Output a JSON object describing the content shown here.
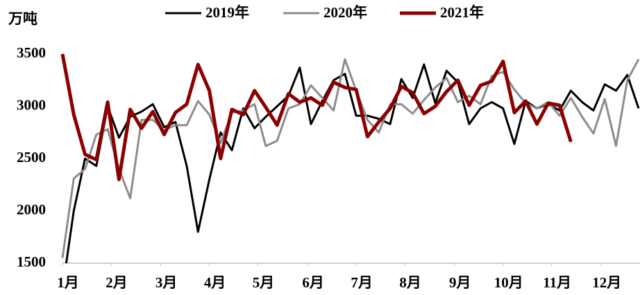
{
  "chart_data": {
    "type": "line",
    "y_label": "万吨",
    "x": [
      1,
      2,
      3,
      4,
      5,
      6,
      7,
      8,
      9,
      10,
      11,
      12,
      13,
      14,
      15,
      16,
      17,
      18,
      19,
      20,
      21,
      22,
      23,
      24,
      25,
      26,
      27,
      28,
      29,
      30,
      31,
      32,
      33,
      34,
      35,
      36,
      37,
      38,
      39,
      40,
      41,
      42,
      43,
      44,
      45,
      46,
      47,
      48,
      49,
      50,
      51,
      52
    ],
    "xlim": [
      1,
      52
    ],
    "xticks": [
      {
        "value": 1,
        "label": "1月"
      },
      {
        "value": 5.3,
        "label": "2月"
      },
      {
        "value": 9.7,
        "label": "3月"
      },
      {
        "value": 14,
        "label": "4月"
      },
      {
        "value": 18.3,
        "label": "5月"
      },
      {
        "value": 22.7,
        "label": "6月"
      },
      {
        "value": 27,
        "label": "7月"
      },
      {
        "value": 31.3,
        "label": "8月"
      },
      {
        "value": 35.7,
        "label": "9月"
      },
      {
        "value": 40,
        "label": "10月"
      },
      {
        "value": 44.3,
        "label": "11月"
      },
      {
        "value": 48.7,
        "label": "12月"
      }
    ],
    "ylim": [
      1500,
      3500
    ],
    "yticks": [
      1500,
      2000,
      2500,
      3000,
      3500
    ],
    "legend": "top",
    "series": [
      {
        "name": "2019年",
        "color": "#000000",
        "values": [
          1250,
          2000,
          2500,
          2430,
          3000,
          2700,
          2900,
          2950,
          3020,
          2800,
          2850,
          2430,
          1800,
          2300,
          2750,
          2580,
          2980,
          2790,
          2900,
          3000,
          3100,
          3370,
          2830,
          3050,
          3250,
          3310,
          2910,
          2910,
          2880,
          2830,
          3260,
          3080,
          3400,
          3030,
          3340,
          3230,
          2830,
          2980,
          3040,
          2980,
          2640,
          3050,
          2980,
          3020,
          2960,
          3150,
          3040,
          2960,
          3210,
          3150,
          3300,
          2980
        ]
      },
      {
        "name": "2020年",
        "color": "#8c8c8c",
        "values": [
          1550,
          2310,
          2400,
          2730,
          2780,
          2400,
          2120,
          2870,
          2870,
          2770,
          2820,
          2820,
          3050,
          2920,
          2650,
          2940,
          2960,
          3020,
          2620,
          2670,
          2980,
          3020,
          3200,
          3080,
          2960,
          3450,
          3150,
          2870,
          2750,
          3020,
          3020,
          2930,
          3060,
          3180,
          3270,
          3040,
          3100,
          3020,
          3290,
          3330,
          3160,
          3030,
          2980,
          3040,
          2910,
          3080,
          2900,
          2740,
          3070,
          2620,
          3250,
          3450
        ]
      },
      {
        "name": "2021年",
        "color": "#8b0000",
        "values": [
          3500,
          2920,
          2540,
          2490,
          3040,
          2300,
          2970,
          2790,
          2950,
          2730,
          2940,
          3020,
          3400,
          3150,
          2500,
          2970,
          2920,
          3150,
          2990,
          2820,
          3120,
          3040,
          3080,
          3010,
          3230,
          3180,
          3160,
          2710,
          2850,
          2980,
          3190,
          3130,
          2930,
          3000,
          3140,
          3250,
          3010,
          3200,
          3240,
          3430,
          2940,
          3050,
          2830,
          3030,
          3010,
          2660,
          null,
          null,
          null,
          null,
          null,
          null
        ]
      }
    ]
  }
}
